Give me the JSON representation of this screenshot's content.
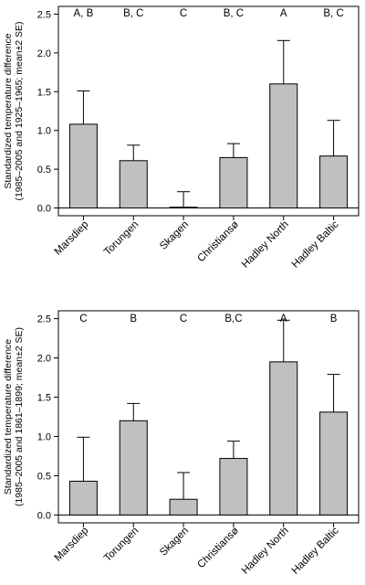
{
  "chart_data": [
    {
      "type": "bar",
      "ylabel_lines": [
        "Standardized temperature difference",
        "(1985–2005 and 1925–1965; mean±2 SE)"
      ],
      "ylim": [
        -0.1,
        2.6
      ],
      "yticks": [
        0.0,
        0.5,
        1.0,
        1.5,
        2.0,
        2.5
      ],
      "ytick_labels": [
        "0.0",
        "0.5",
        "1.0",
        "1.5",
        "2.0",
        "2.5"
      ],
      "categories": [
        "Marsdiep",
        "Torungen",
        "Skagen",
        "Christiansø",
        "Hadley North",
        "Hadley Baltic"
      ],
      "values": [
        1.08,
        0.61,
        0.01,
        0.65,
        1.6,
        0.67
      ],
      "error_plus": [
        0.43,
        0.2,
        0.2,
        0.18,
        0.56,
        0.46
      ],
      "group_letters": [
        "A, B",
        "B, C",
        "C",
        "B, C",
        "A",
        "B, C"
      ],
      "zero_line": true,
      "bar_color": "#c0c0c0"
    },
    {
      "type": "bar",
      "ylabel_lines": [
        "Standardized temperature difference",
        "(1985–2005 and 1861–1899; mean±2 SE)"
      ],
      "ylim": [
        -0.1,
        2.6
      ],
      "yticks": [
        0.0,
        0.5,
        1.0,
        1.5,
        2.0,
        2.5
      ],
      "ytick_labels": [
        "0.0",
        "0.5",
        "1.0",
        "1.5",
        "2.0",
        "2.5"
      ],
      "categories": [
        "Marsdiep",
        "Torungen",
        "Skagen",
        "Christiansø",
        "Hadley North",
        "Hadley Baltic"
      ],
      "values": [
        0.43,
        1.2,
        0.2,
        0.72,
        1.95,
        1.31
      ],
      "error_plus": [
        0.56,
        0.22,
        0.34,
        0.22,
        0.53,
        0.48
      ],
      "group_letters": [
        "C",
        "B",
        "C",
        "B,C",
        "A",
        "B"
      ],
      "zero_line": true,
      "bar_color": "#c0c0c0"
    }
  ]
}
